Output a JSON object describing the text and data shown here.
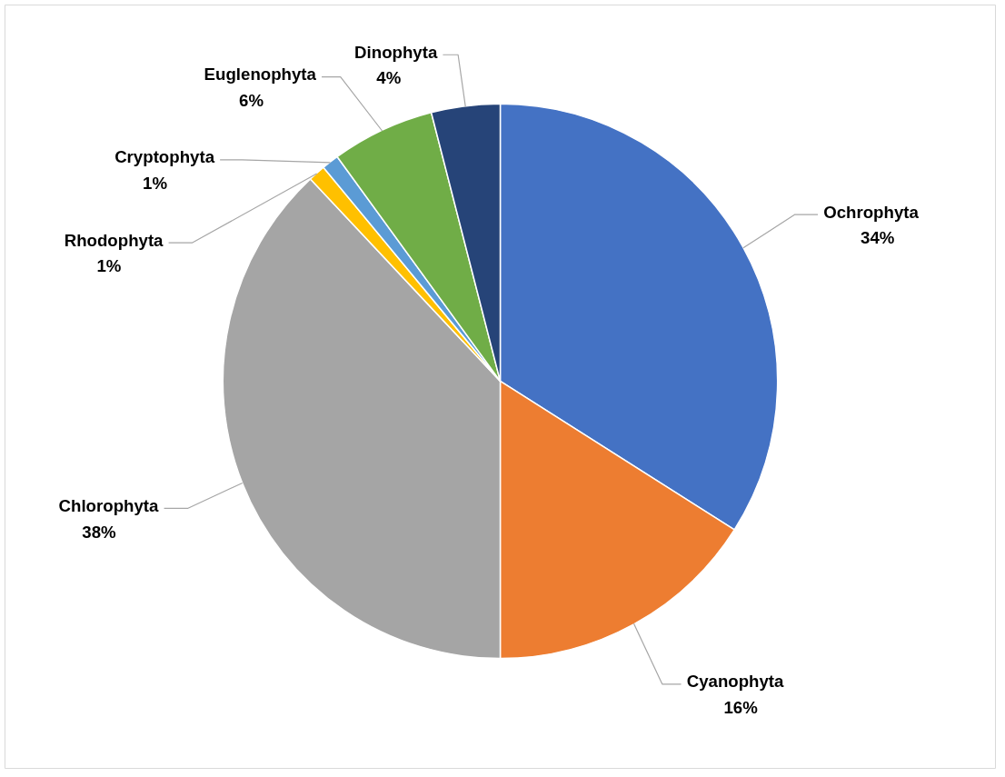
{
  "chart_data": {
    "type": "pie",
    "categories": [
      "Ochrophyta",
      "Cyanophyta",
      "Chlorophyta",
      "Rhodophyta",
      "Cryptophyta",
      "Euglenophyta",
      "Dinophyta"
    ],
    "values": [
      34,
      16,
      38,
      1,
      1,
      6,
      4
    ],
    "value_labels": [
      "34%",
      "16%",
      "38%",
      "1%",
      "1%",
      "6%",
      "4%"
    ],
    "colors": [
      "#4472c4",
      "#ed7d31",
      "#a5a5a5",
      "#ffc000",
      "#5b9bd5",
      "#70ad47",
      "#264478"
    ]
  }
}
